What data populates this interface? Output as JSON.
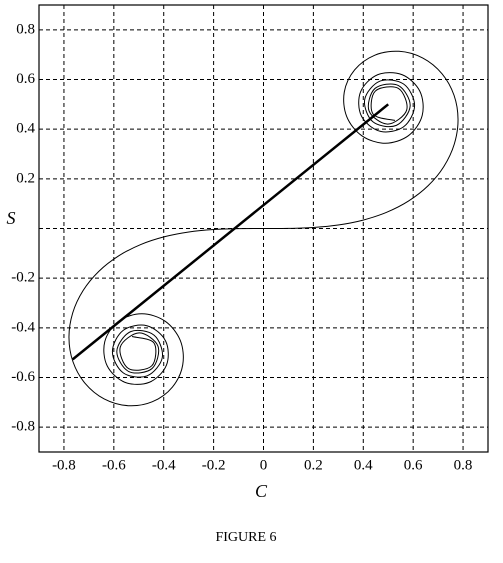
{
  "chart_data": {
    "type": "line",
    "caption": "FIGURE 6",
    "x_label": "C",
    "y_label": "S",
    "xlim": [
      -0.9,
      0.9
    ],
    "ylim": [
      -0.9,
      0.9
    ],
    "xticks": [
      -0.8,
      -0.6,
      -0.4,
      -0.2,
      0,
      0.2,
      0.4,
      0.6,
      0.8
    ],
    "yticks": [
      -0.8,
      -0.6,
      -0.4,
      -0.2,
      {
        "value": 0,
        "label": null
      },
      0.2,
      0.4,
      0.6,
      0.8
    ],
    "grid": true,
    "series": [
      {
        "color": "#000000",
        "line_width": 1,
        "x": [
          -0.527,
          -0.439,
          -0.448,
          -0.541,
          -0.574,
          -0.4984,
          -0.423,
          -0.447,
          -0.54,
          -0.588,
          -0.5326,
          -0.4385,
          -0.4057,
          -0.4663,
          -0.5616,
          -0.6057,
          -0.5624,
          -0.4675,
          -0.3925,
          -0.389,
          -0.4574,
          -0.555,
          -0.6266,
          -0.6363,
          -0.5816,
          -0.4882,
          -0.3944,
          -0.3336,
          -0.3238,
          -0.3655,
          -0.4453,
          -0.5431,
          -0.6386,
          -0.7154,
          -0.7638,
          -0.7799,
          -0.7648,
          -0.7228,
          -0.6597,
          -0.5811,
          -0.4923,
          -0.3975,
          -0.2994,
          -0.1999,
          -0.1,
          0,
          0.1,
          0.1999,
          0.2994,
          0.3975,
          0.4923,
          0.5811,
          0.6597,
          0.7228,
          0.7648,
          0.7799,
          0.7638,
          0.7154,
          0.6386,
          0.5431,
          0.4453,
          0.3655,
          0.3238,
          0.3336,
          0.3944,
          0.4882,
          0.5816,
          0.6363,
          0.6266,
          0.555,
          0.4574,
          0.389,
          0.3925,
          0.4675,
          0.5624,
          0.6057,
          0.5616,
          0.4663,
          0.4057,
          0.4385,
          0.5326,
          0.588,
          0.54,
          0.447,
          0.423,
          0.4984,
          0.574,
          0.541,
          0.448,
          0.439,
          0.527
        ],
        "values": [
          -0.435,
          -0.461,
          -0.553,
          -0.564,
          -0.477,
          -0.4205,
          -0.474,
          -0.564,
          -0.576,
          -0.494,
          -0.4153,
          -0.4297,
          -0.5193,
          -0.5933,
          -0.5818,
          -0.4963,
          -0.4101,
          -0.3915,
          -0.4529,
          -0.55,
          -0.6192,
          -0.6197,
          -0.5532,
          -0.4557,
          -0.3743,
          -0.3434,
          -0.3733,
          -0.4509,
          -0.5492,
          -0.6389,
          -0.6975,
          -0.7135,
          -0.6863,
          -0.6234,
          -0.5365,
          -0.4383,
          -0.3398,
          -0.2493,
          -0.1721,
          -0.1105,
          -0.0647,
          -0.0334,
          -0.0141,
          -0.0042,
          -0.0005,
          0,
          0.0005,
          0.0042,
          0.0141,
          0.0334,
          0.0647,
          0.1105,
          0.1721,
          0.2493,
          0.3398,
          0.4383,
          0.5365,
          0.6234,
          0.6863,
          0.7135,
          0.6975,
          0.6389,
          0.5492,
          0.4509,
          0.3733,
          0.3434,
          0.3743,
          0.4557,
          0.5532,
          0.6197,
          0.6192,
          0.55,
          0.4529,
          0.3915,
          0.4101,
          0.4963,
          0.5818,
          0.5933,
          0.5193,
          0.4297,
          0.4153,
          0.494,
          0.576,
          0.564,
          0.474,
          0.4205,
          0.477,
          0.564,
          0.553,
          0.461,
          0.435
        ]
      },
      {
        "color": "#000000",
        "line_width": 2.5,
        "x": [
          -0.765,
          0.5
        ],
        "values": [
          -0.527,
          0.5
        ]
      }
    ]
  }
}
